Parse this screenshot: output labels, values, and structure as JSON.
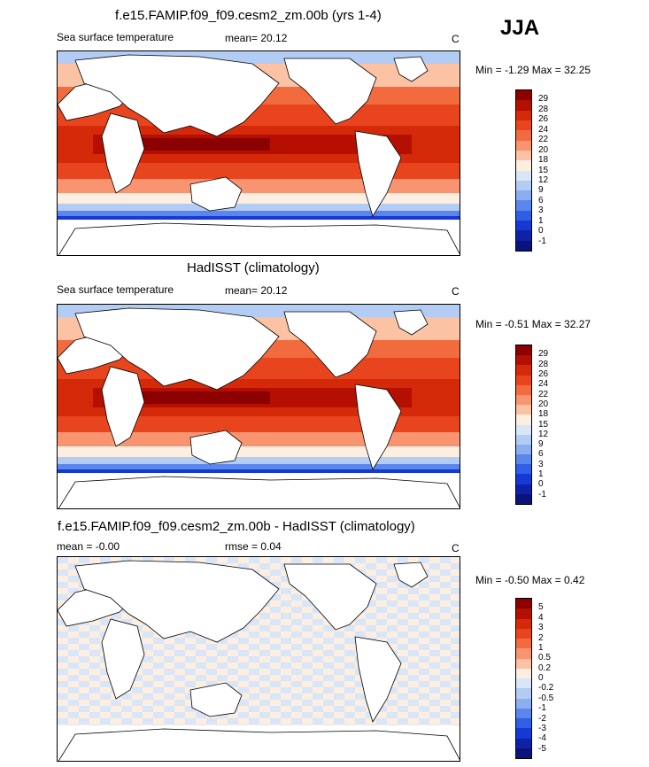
{
  "season": "JJA",
  "panels": [
    {
      "title": "f.e15.FAMIP.f09_f09.cesm2_zm.00b (yrs 1-4)",
      "left_label": "Sea surface temperature",
      "mid_label": "mean=  20.12",
      "units": "C",
      "minmax": "Min =  -1.29 Max =  32.25",
      "levels": [
        "29",
        "28",
        "26",
        "24",
        "22",
        "20",
        "18",
        "15",
        "12",
        "9",
        "6",
        "3",
        "1",
        "0",
        "-1"
      ],
      "colors": [
        "#8b0000",
        "#b40f00",
        "#d42a0a",
        "#e8451e",
        "#f26b3f",
        "#f89570",
        "#fbc2a4",
        "#fdeee2",
        "#d8e6f8",
        "#b3ccf3",
        "#8aaef0",
        "#5b87ec",
        "#2f5fe5",
        "#1539d2",
        "#0e22a8",
        "#0a137c"
      ]
    },
    {
      "title": "HadISST (climatology)",
      "left_label": "Sea surface temperature",
      "mid_label": "mean=  20.12",
      "units": "C",
      "minmax": "Min =  -0.51 Max =  32.27",
      "levels": [
        "29",
        "28",
        "26",
        "24",
        "22",
        "20",
        "18",
        "15",
        "12",
        "9",
        "6",
        "3",
        "1",
        "0",
        "-1"
      ],
      "colors": [
        "#8b0000",
        "#b40f00",
        "#d42a0a",
        "#e8451e",
        "#f26b3f",
        "#f89570",
        "#fbc2a4",
        "#fdeee2",
        "#d8e6f8",
        "#b3ccf3",
        "#8aaef0",
        "#5b87ec",
        "#2f5fe5",
        "#1539d2",
        "#0e22a8",
        "#0a137c"
      ]
    },
    {
      "title": "f.e15.FAMIP.f09_f09.cesm2_zm.00b - HadISST (climatology)",
      "left_label": "mean =  -0.00",
      "mid_label": "rmse =   0.04",
      "units": "C",
      "minmax": "Min =  -0.50 Max =   0.42",
      "levels": [
        "5",
        "4",
        "3",
        "2",
        "1",
        "0.5",
        "0.2",
        "0",
        "-0.2",
        "-0.5",
        "-1",
        "-2",
        "-3",
        "-4",
        "-5"
      ],
      "colors": [
        "#8b0000",
        "#b40f00",
        "#d42a0a",
        "#e8451e",
        "#f26b3f",
        "#f89570",
        "#fbc2a4",
        "#fdeee2",
        "#d8e6f8",
        "#b3ccf3",
        "#8aaef0",
        "#5b87ec",
        "#2f5fe5",
        "#1539d2",
        "#0e22a8",
        "#0a137c"
      ]
    }
  ]
}
